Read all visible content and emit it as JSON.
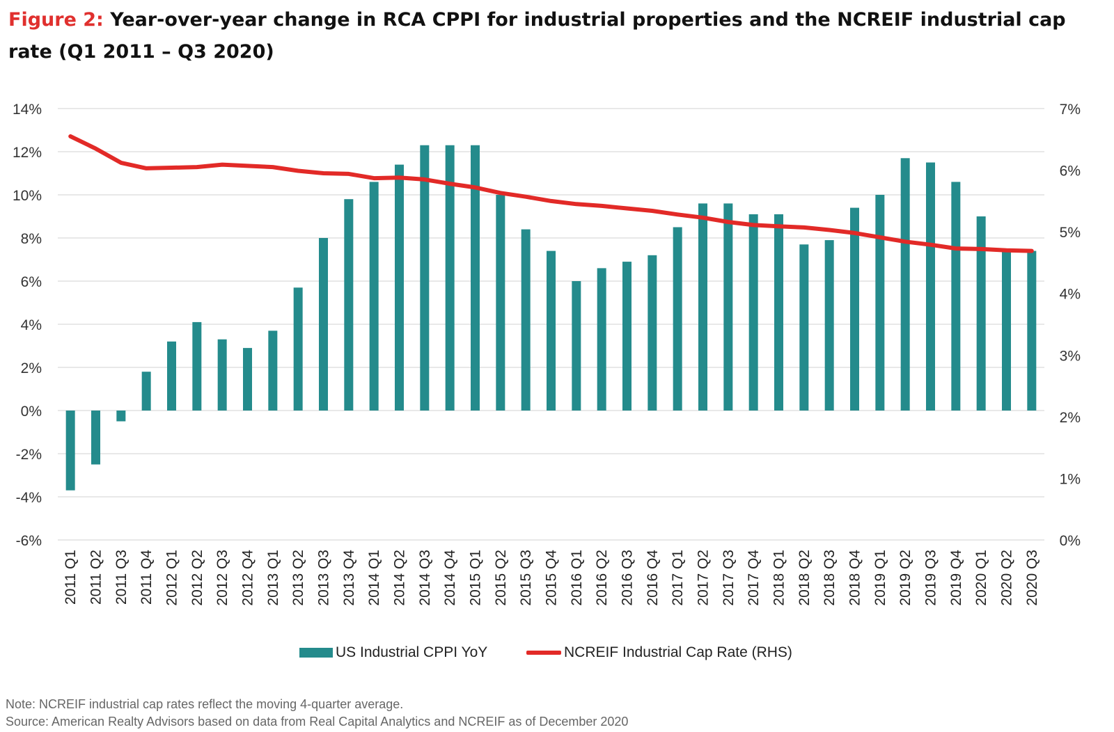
{
  "header": {
    "figure_label": "Figure 2:",
    "title": "Year-over-year change in RCA CPPI for industrial properties and the NCREIF industrial cap rate (Q1 2011 – Q3 2020)"
  },
  "footer": {
    "note": "Note: NCREIF industrial cap rates reflect the moving 4-quarter average.",
    "source": "Source: American Realty Advisors based on data from Real Capital Analytics and NCREIF as of December 2020"
  },
  "chart_data": {
    "type": "bar",
    "title": "",
    "xlabel": "",
    "ylabel": "",
    "categories": [
      "2011 Q1",
      "2011 Q2",
      "2011 Q3",
      "2011 Q4",
      "2012 Q1",
      "2012 Q2",
      "2012 Q3",
      "2012 Q4",
      "2013 Q1",
      "2013 Q2",
      "2013 Q3",
      "2013 Q4",
      "2014 Q1",
      "2014 Q2",
      "2014 Q3",
      "2014 Q4",
      "2015 Q1",
      "2015 Q2",
      "2015 Q3",
      "2015 Q4",
      "2016 Q1",
      "2016 Q2",
      "2016 Q3",
      "2016 Q4",
      "2017 Q1",
      "2017 Q2",
      "2017 Q3",
      "2017 Q4",
      "2018 Q1",
      "2018 Q2",
      "2018 Q3",
      "2018 Q4",
      "2019 Q1",
      "2019 Q2",
      "2019 Q3",
      "2019 Q4",
      "2020 Q1",
      "2020 Q2",
      "2020 Q3"
    ],
    "y_left": {
      "ticks": [
        "14%",
        "12%",
        "10%",
        "8%",
        "6%",
        "4%",
        "2%",
        "0%",
        "-2%",
        "-4%",
        "-6%"
      ],
      "ylim": [
        -6,
        14
      ]
    },
    "y_right": {
      "ticks": [
        "7%",
        "6%",
        "5%",
        "4%",
        "3%",
        "2%",
        "1%",
        "0%"
      ],
      "ylim": [
        0,
        7
      ]
    },
    "grid": true,
    "legend_position": "bottom",
    "series": [
      {
        "name": "US Industrial CPPI YoY",
        "type": "bar",
        "axis": "left",
        "color": "#248b8c",
        "values": [
          -3.7,
          -2.5,
          -0.5,
          1.8,
          3.2,
          4.1,
          3.3,
          2.9,
          3.7,
          5.7,
          8.0,
          9.8,
          10.6,
          11.4,
          12.3,
          12.3,
          12.3,
          10.0,
          8.4,
          7.4,
          6.0,
          6.6,
          6.9,
          7.2,
          8.5,
          9.6,
          9.6,
          9.1,
          9.1,
          7.7,
          7.9,
          9.4,
          10.0,
          11.7,
          11.5,
          10.6,
          9.0,
          7.4,
          7.4
        ]
      },
      {
        "name": "NCREIF Industrial Cap Rate (RHS)",
        "type": "line",
        "axis": "right",
        "color": "#e22a27",
        "values": [
          6.55,
          6.35,
          6.12,
          6.03,
          6.04,
          6.05,
          6.09,
          6.07,
          6.05,
          5.99,
          5.95,
          5.94,
          5.87,
          5.88,
          5.85,
          5.78,
          5.72,
          5.63,
          5.57,
          5.5,
          5.45,
          5.42,
          5.38,
          5.34,
          5.28,
          5.23,
          5.16,
          5.11,
          5.09,
          5.07,
          5.03,
          4.98,
          4.91,
          4.84,
          4.79,
          4.73,
          4.72,
          4.7,
          4.69
        ]
      }
    ]
  }
}
